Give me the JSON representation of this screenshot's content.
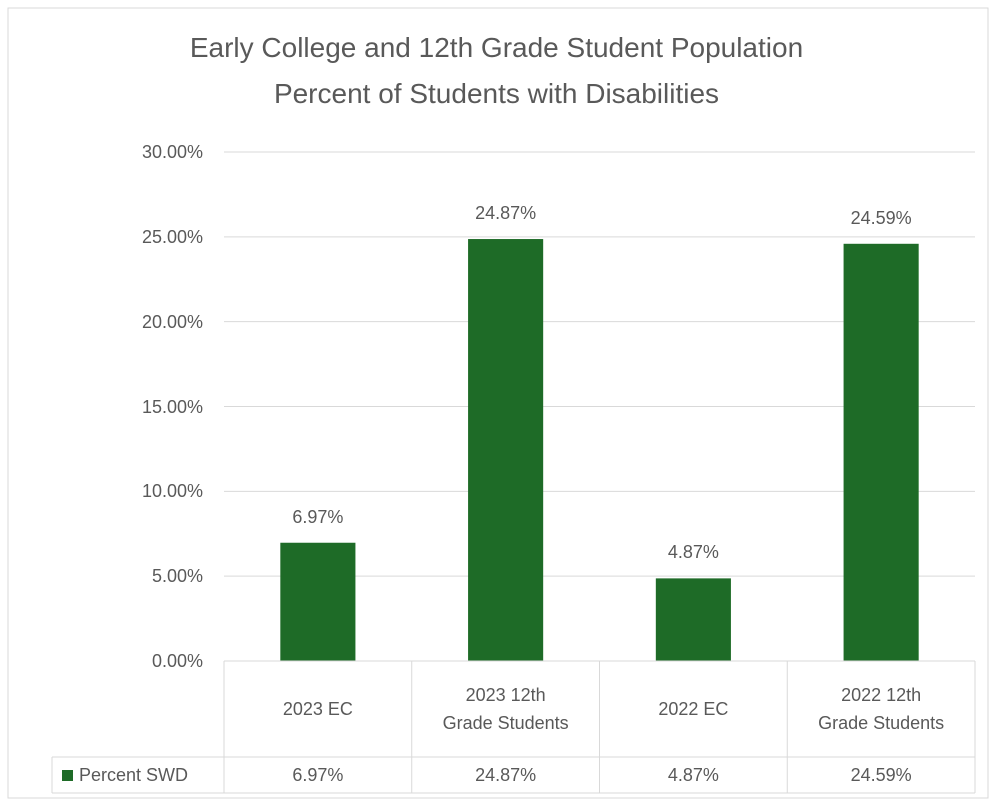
{
  "chart_data": {
    "type": "bar",
    "title": [
      "Early College and 12th Grade Student Population",
      "Percent of Students with Disabilities"
    ],
    "categories": [
      "2023 EC",
      "2023 12th Grade Students",
      "2022 EC",
      "2022 12th Grade Students"
    ],
    "series": [
      {
        "name": "Percent SWD",
        "color": "#1e6b27",
        "values": [
          6.97,
          24.87,
          4.87,
          24.59
        ],
        "value_labels": [
          "6.97%",
          "24.87%",
          "4.87%",
          "24.59%"
        ]
      }
    ],
    "ylim": [
      0,
      30
    ],
    "yticks": [
      {
        "value": 0,
        "label": "0.00%"
      },
      {
        "value": 5,
        "label": "5.00%"
      },
      {
        "value": 10,
        "label": "10.00%"
      },
      {
        "value": 15,
        "label": "15.00%"
      },
      {
        "value": 20,
        "label": "20.00%"
      },
      {
        "value": 25,
        "label": "25.00%"
      },
      {
        "value": 30,
        "label": "30.00%"
      }
    ],
    "grid": true,
    "data_table": true
  }
}
